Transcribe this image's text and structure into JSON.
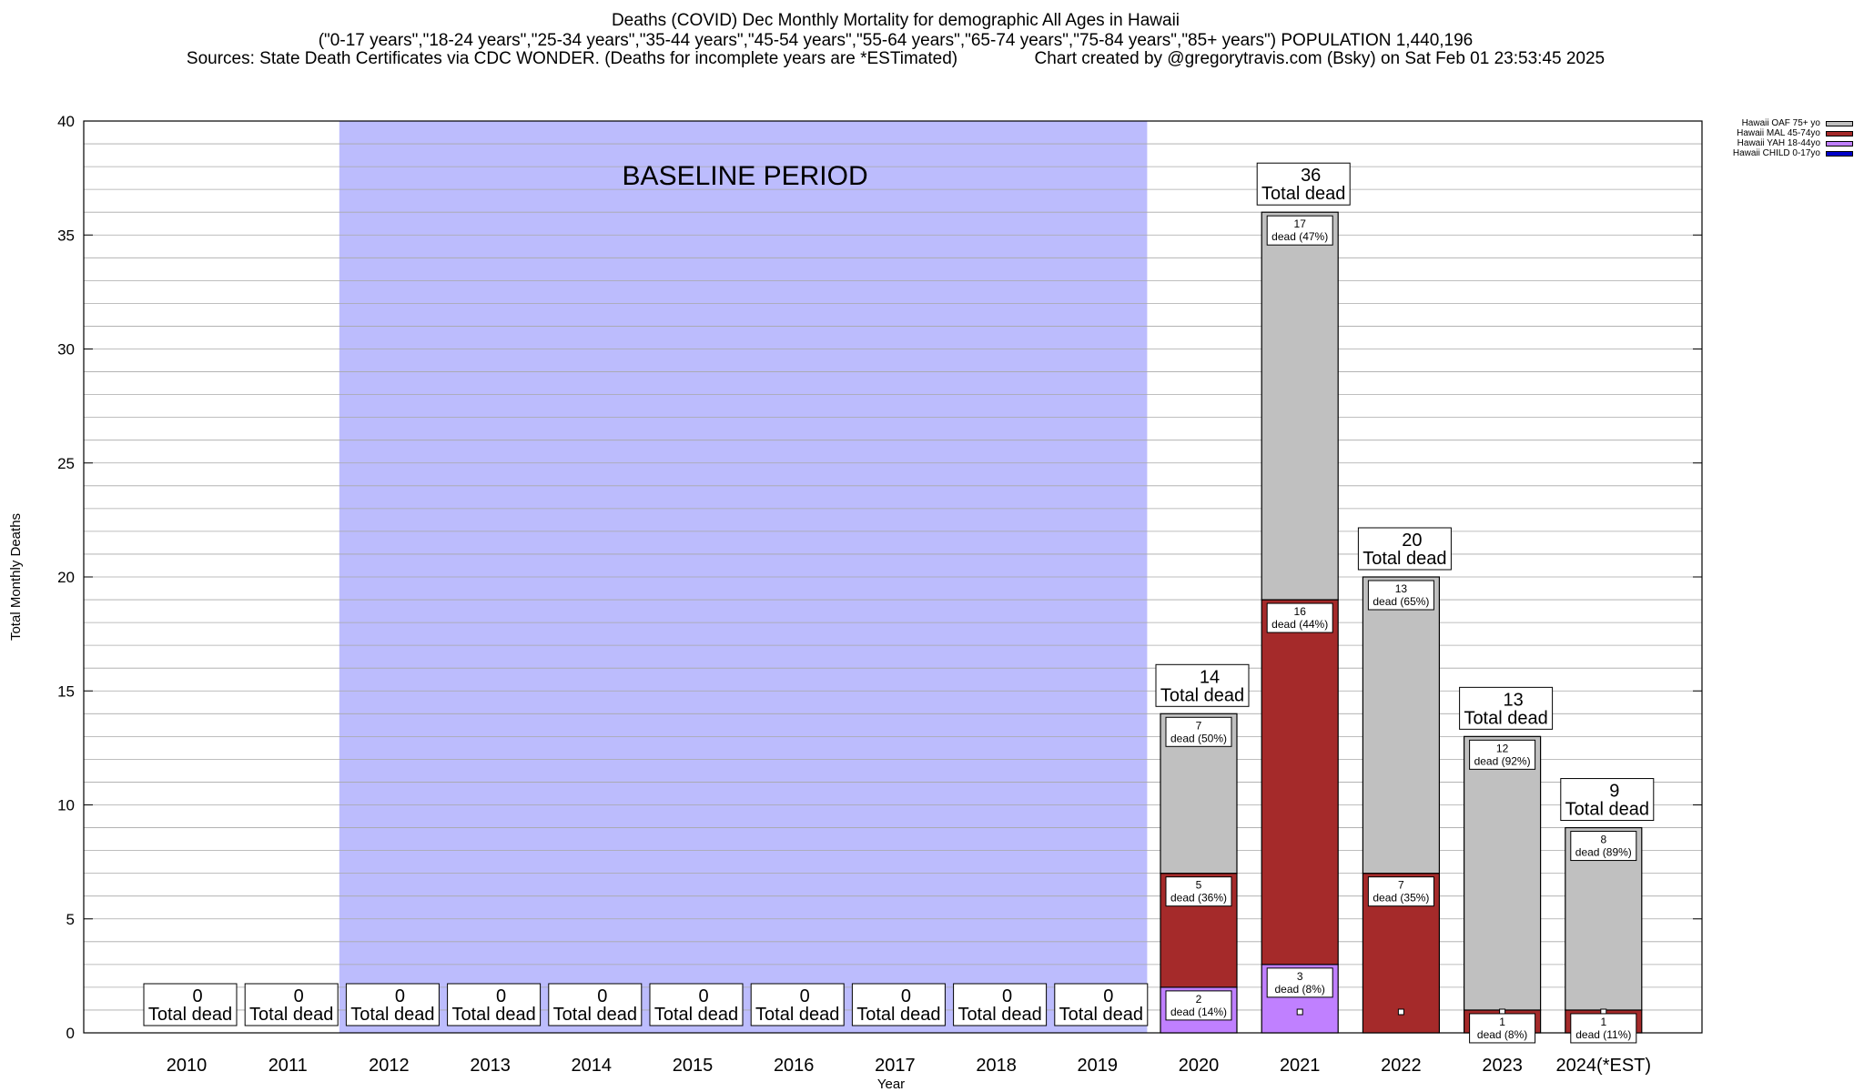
{
  "header": {
    "title_line1": "Deaths (COVID) Dec Monthly Mortality for demographic All Ages in Hawaii",
    "title_line2": "(\"0-17 years\",\"18-24 years\",\"25-34 years\",\"35-44 years\",\"45-54 years\",\"55-64 years\",\"65-74 years\",\"75-84 years\",\"85+ years\") POPULATION 1,440,196",
    "title_line3": "Sources: State Death Certificates via CDC WONDER. (Deaths for incomplete years are *ESTimated)                Chart created by @gregorytravis.com (Bsky) on Sat Feb 01 23:53:45 2025"
  },
  "chart_data": {
    "type": "bar",
    "stacked": true,
    "xlabel": "Year",
    "ylabel": "Total Monthly Deaths",
    "ylim": [
      0,
      40
    ],
    "yticks": [
      0,
      5,
      10,
      15,
      20,
      25,
      30,
      35,
      40
    ],
    "categories": [
      "2010",
      "2011",
      "2012",
      "2013",
      "2014",
      "2015",
      "2016",
      "2017",
      "2018",
      "2019",
      "2020",
      "2021",
      "2022",
      "2023",
      "2024(*EST)"
    ],
    "baseline_label": "BASELINE PERIOD",
    "baseline_range": [
      "2012",
      "2019"
    ],
    "total_label_suffix": "Total dead",
    "series": [
      {
        "name": "Hawaii CHILD 0-17yo",
        "color": "#0000c8",
        "values": [
          0,
          0,
          0,
          0,
          0,
          0,
          0,
          0,
          0,
          0,
          0,
          0,
          0,
          0,
          0
        ]
      },
      {
        "name": "Hawaii YAH 18-44yo",
        "color": "#c080ff",
        "values": [
          0,
          0,
          0,
          0,
          0,
          0,
          0,
          0,
          0,
          0,
          2,
          3,
          0,
          0,
          0
        ]
      },
      {
        "name": "Hawaii MAL 45-74yo",
        "color": "#a52a2a",
        "values": [
          0,
          0,
          0,
          0,
          0,
          0,
          0,
          0,
          0,
          0,
          5,
          16,
          7,
          1,
          1
        ]
      },
      {
        "name": "Hawaii OAF 75+ yo",
        "color": "#c0c0c0",
        "values": [
          0,
          0,
          0,
          0,
          0,
          0,
          0,
          0,
          0,
          0,
          7,
          17,
          13,
          12,
          8
        ]
      }
    ],
    "totals": [
      0,
      0,
      0,
      0,
      0,
      0,
      0,
      0,
      0,
      0,
      14,
      36,
      20,
      13,
      9
    ],
    "segment_labels": [
      {
        "year": "2020",
        "series": "Hawaii YAH 18-44yo",
        "value": "2",
        "text": "dead (14%)"
      },
      {
        "year": "2020",
        "series": "Hawaii MAL 45-74yo",
        "value": "5",
        "text": "dead (36%)"
      },
      {
        "year": "2020",
        "series": "Hawaii OAF 75+ yo",
        "value": "7",
        "text": "dead (50%)"
      },
      {
        "year": "2021",
        "series": "Hawaii YAH 18-44yo",
        "value": "3",
        "text": "dead (8%)"
      },
      {
        "year": "2021",
        "series": "Hawaii MAL 45-74yo",
        "value": "16",
        "text": "dead (44%)"
      },
      {
        "year": "2021",
        "series": "Hawaii OAF 75+ yo",
        "value": "17",
        "text": "dead (47%)"
      },
      {
        "year": "2022",
        "series": "Hawaii MAL 45-74yo",
        "value": "7",
        "text": "dead (35%)"
      },
      {
        "year": "2022",
        "series": "Hawaii OAF 75+ yo",
        "value": "13",
        "text": "dead (65%)"
      },
      {
        "year": "2023",
        "series": "Hawaii MAL 45-74yo",
        "value": "1",
        "text": "dead (8%)"
      },
      {
        "year": "2023",
        "series": "Hawaii OAF 75+ yo",
        "value": "12",
        "text": "dead (92%)"
      },
      {
        "year": "2024(*EST)",
        "series": "Hawaii MAL 45-74yo",
        "value": "1",
        "text": "dead (11%)"
      },
      {
        "year": "2024(*EST)",
        "series": "Hawaii OAF 75+ yo",
        "value": "8",
        "text": "dead (89%)"
      }
    ],
    "legend": {
      "placement": "top-right",
      "entries": [
        "Hawaii OAF 75+ yo",
        "Hawaii MAL 45-74yo",
        "Hawaii YAH 18-44yo",
        "Hawaii CHILD 0-17yo"
      ]
    },
    "grid": true
  }
}
